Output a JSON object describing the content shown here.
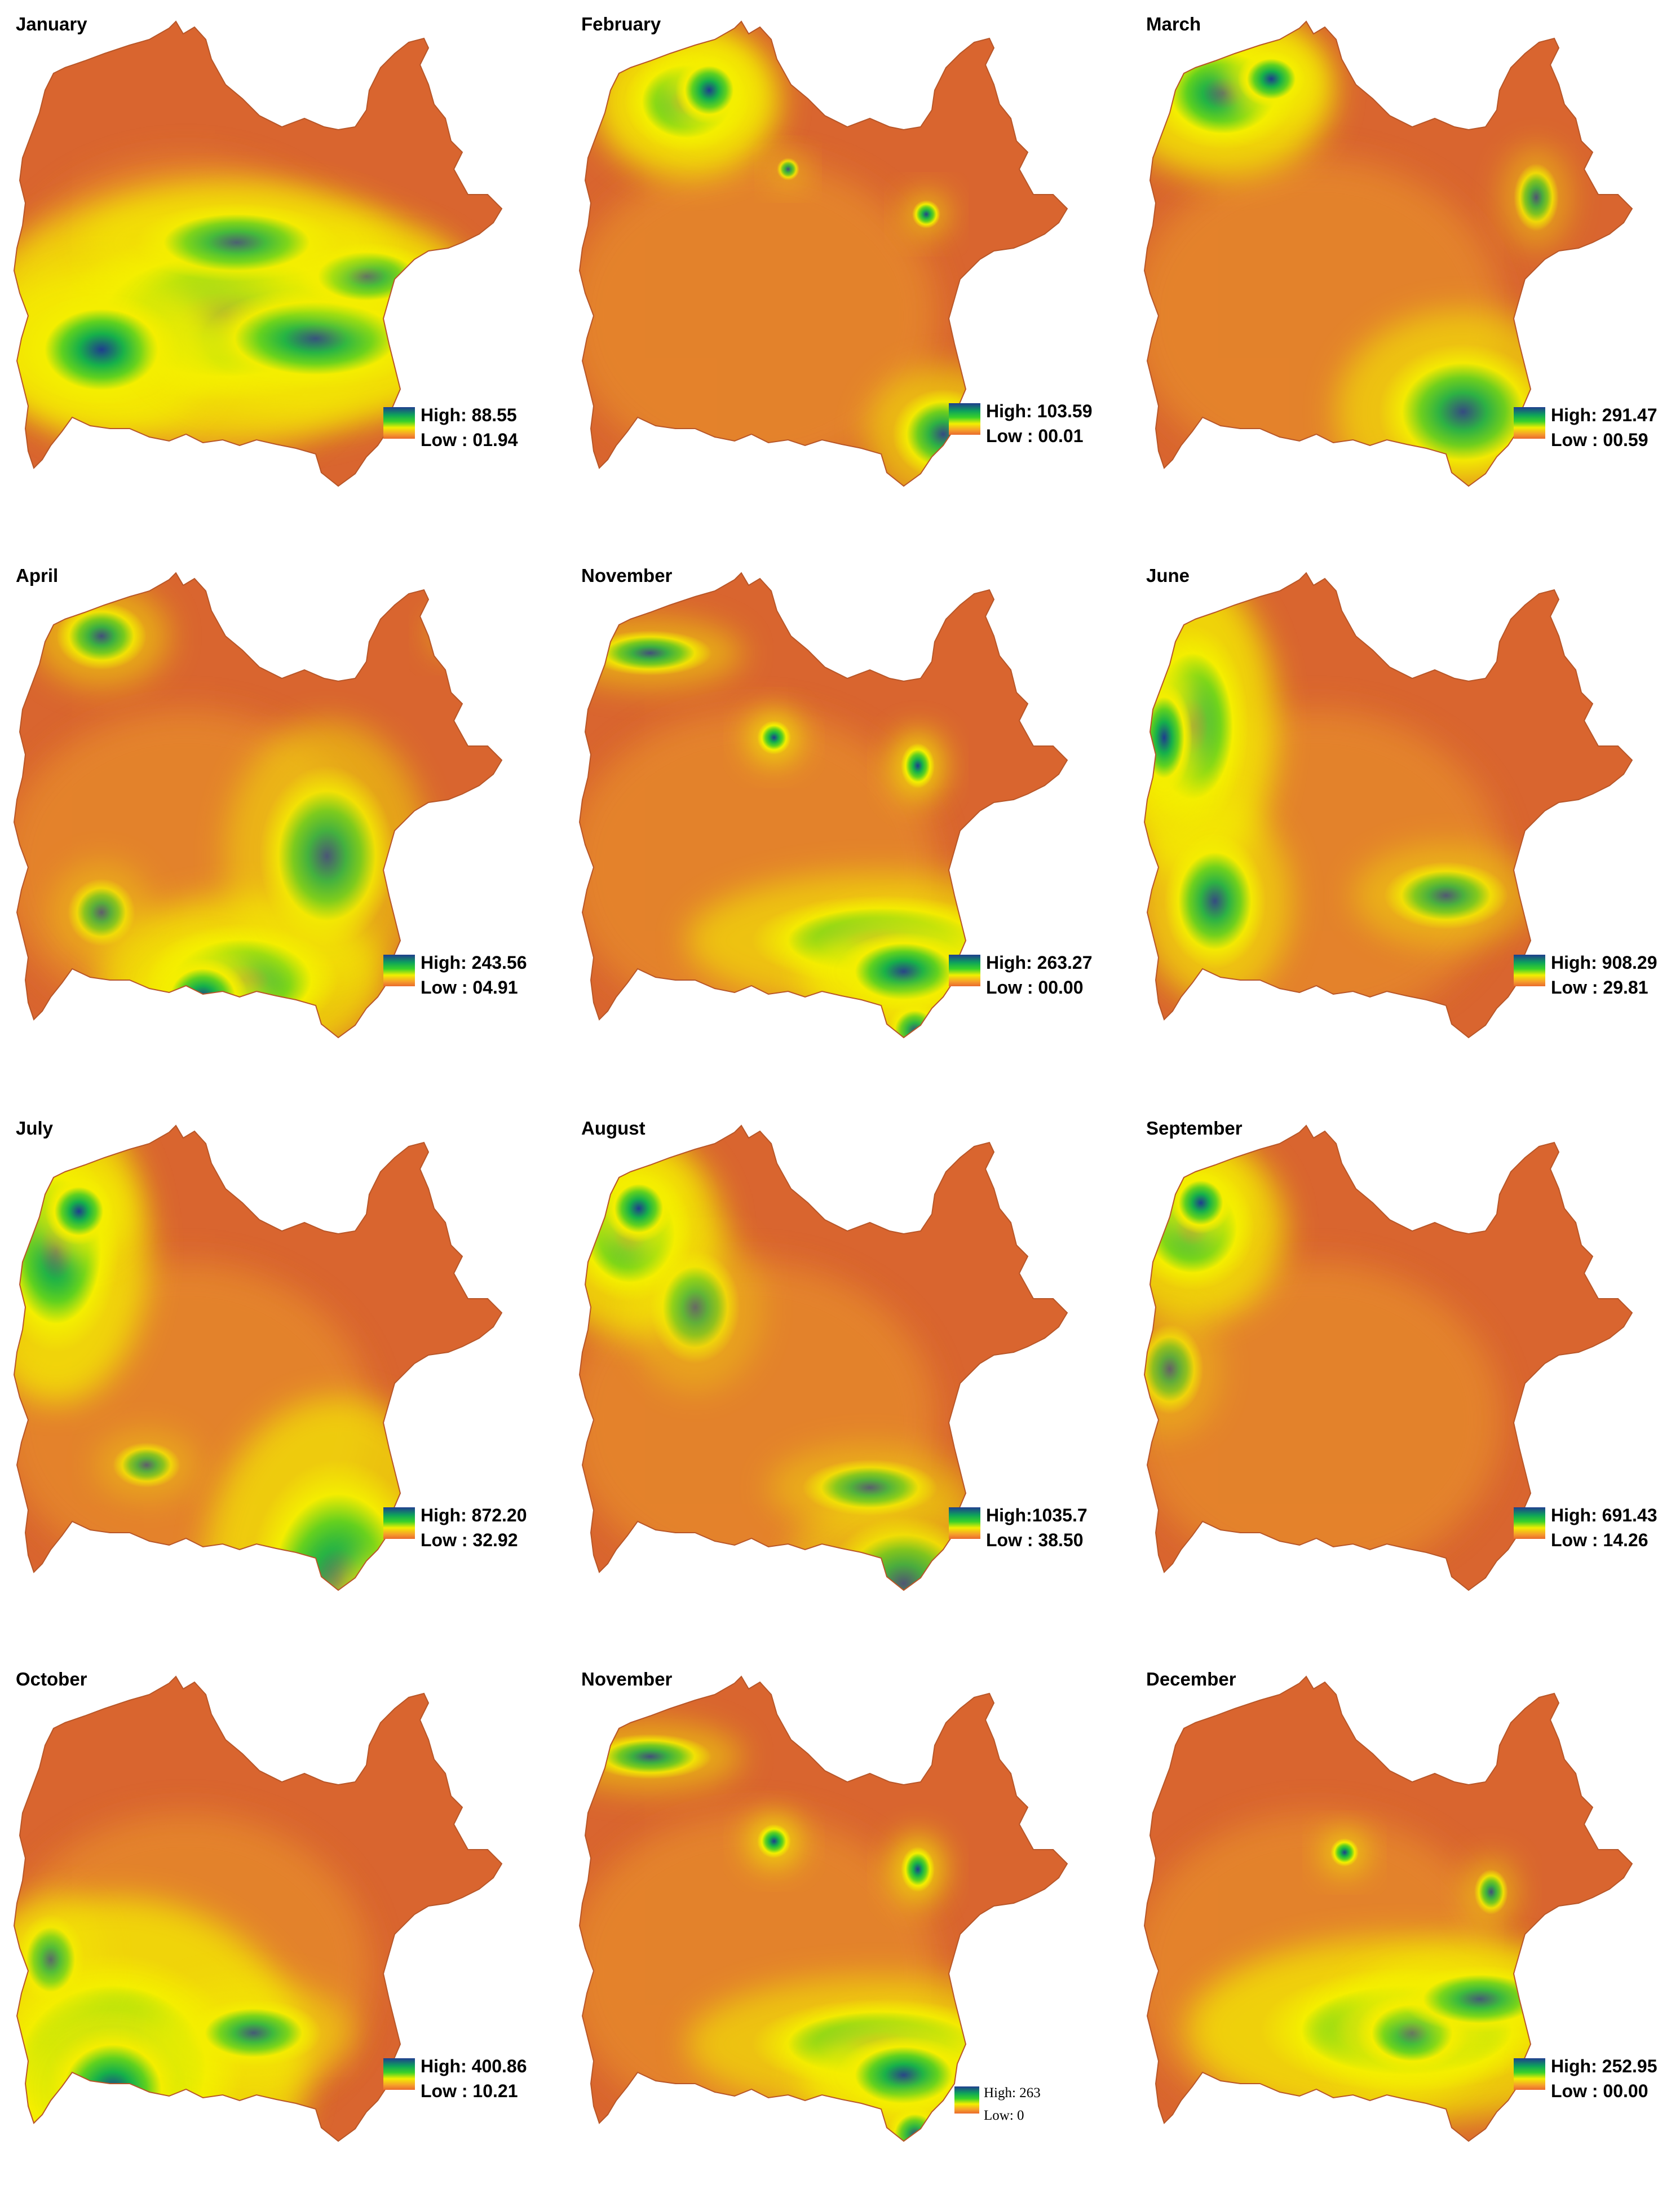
{
  "colors": {
    "high": "#1f3d8f",
    "green": "#16b04a",
    "lime": "#5fd11f",
    "yellow": "#f4ee00",
    "orange": "#efa12a",
    "low": "#d9652f"
  },
  "legend_labels": {
    "high": "High",
    "low": "Low"
  },
  "panels": [
    {
      "month": "January",
      "high": "High: 88.55",
      "low": "Low : 01.94",
      "high_value": 88.55,
      "low_value": 1.94
    },
    {
      "month": "February",
      "high": "High: 103.59",
      "low": "Low : 00.01",
      "high_value": 103.59,
      "low_value": 0.01
    },
    {
      "month": "March",
      "high": "High: 291.47",
      "low": "Low : 00.59",
      "high_value": 291.47,
      "low_value": 0.59
    },
    {
      "month": "April",
      "high": "High: 243.56",
      "low": "Low : 04.91",
      "high_value": 243.56,
      "low_value": 4.91
    },
    {
      "month": "November",
      "high": "High: 263.27",
      "low": "Low : 00.00",
      "high_value": 263.27,
      "low_value": 0.0
    },
    {
      "month": "June",
      "high": "High: 908.29",
      "low": "Low : 29.81",
      "high_value": 908.29,
      "low_value": 29.81
    },
    {
      "month": "July",
      "high": "High: 872.20",
      "low": "Low : 32.92",
      "high_value": 872.2,
      "low_value": 32.92
    },
    {
      "month": "August",
      "high": "High:1035.7",
      "low": "Low : 38.50",
      "high_value": 1035.7,
      "low_value": 38.5
    },
    {
      "month": "September",
      "high": "High: 691.43",
      "low": "Low : 14.26",
      "high_value": 691.43,
      "low_value": 14.26
    },
    {
      "month": "October",
      "high": "High: 400.86",
      "low": "Low : 10.21",
      "high_value": 400.86,
      "low_value": 10.21
    },
    {
      "month": "November",
      "high": "High: 263",
      "low": "Low: 0",
      "high_value": 263,
      "low_value": 0
    },
    {
      "month": "December",
      "high": "High: 252.95",
      "low": "Low : 00.00",
      "high_value": 252.95,
      "low_value": 0.0
    }
  ]
}
